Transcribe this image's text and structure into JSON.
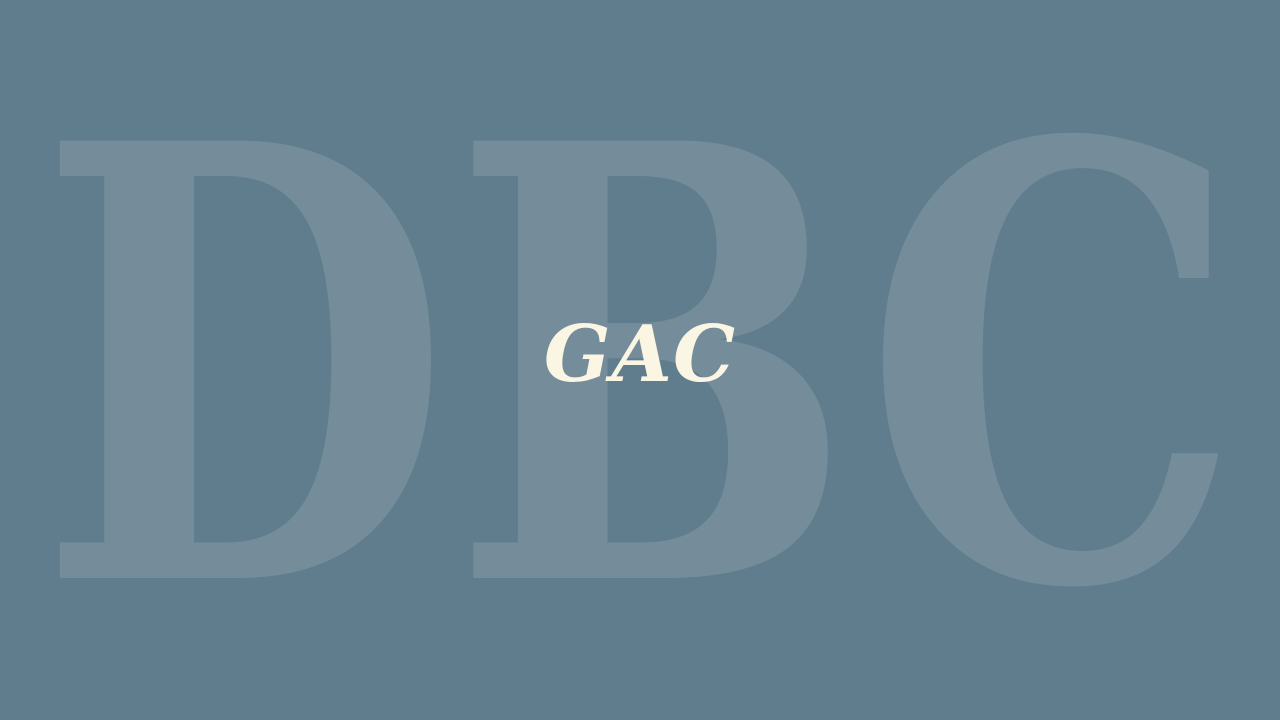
{
  "background_letters": "DBC",
  "center_text": "GAC",
  "colors": {
    "background": "#5f7d8d",
    "background_letters": "#758d9a",
    "center_text": "#fbf5e3"
  }
}
